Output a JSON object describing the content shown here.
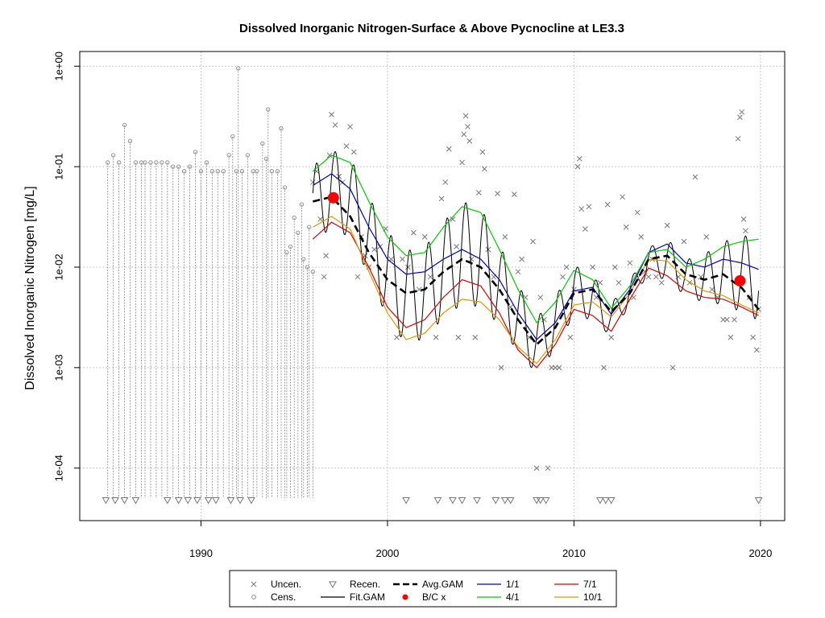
{
  "chart_data": {
    "type": "scatter",
    "title": "Dissolved Inorganic Nitrogen-Surface & Above Pycnocline at LE3.3",
    "ylabel": "Dissolved Inorganic Nitrogen [mg/L]",
    "xlabel": "",
    "y_scale": "log",
    "xlim": [
      1983.5,
      2021.3
    ],
    "ylim": [
      3e-05,
      1.4
    ],
    "x_ticks": [
      1990,
      2000,
      2010,
      2020
    ],
    "y_ticks": [
      {
        "value": 1,
        "label": "1e+00"
      },
      {
        "value": 0.1,
        "label": "1e-01"
      },
      {
        "value": 0.01,
        "label": "1e-02"
      },
      {
        "value": 0.001,
        "label": "1e-03"
      },
      {
        "value": 0.0001,
        "label": "1e-04"
      }
    ],
    "grid": true,
    "colors": {
      "uncen": "#777777",
      "cens": "#888888",
      "fit_gam": "#000000",
      "avg_gam": "#000000",
      "bc": "#ff0000",
      "p1_1": "#0000cc",
      "p4_1": "#00cc00",
      "p7_1": "#dd0000",
      "p10_1": "#e69500"
    },
    "legend": {
      "placement": "bottom",
      "items": [
        {
          "label": "Uncen.",
          "symbol": "x"
        },
        {
          "label": "Cens.",
          "symbol": "circle"
        },
        {
          "label": "Recen.",
          "symbol": "triangle-down"
        },
        {
          "label": "Fit.GAM",
          "symbol": "line-black"
        },
        {
          "label": "Avg.GAM",
          "symbol": "dash-black"
        },
        {
          "label": "B/C x",
          "symbol": "dot-red"
        },
        {
          "label": "1/1",
          "symbol": "line-blue"
        },
        {
          "label": "4/1",
          "symbol": "line-green"
        },
        {
          "label": "7/1",
          "symbol": "line-red"
        },
        {
          "label": "10/1",
          "symbol": "line-orange"
        }
      ]
    },
    "bc_points": [
      {
        "x": 1997.1,
        "y": 0.049
      },
      {
        "x": 2018.9,
        "y": 0.0073
      }
    ],
    "uncensored_points": [
      [
        1996.0,
        0.07
      ],
      [
        1996.2,
        0.09
      ],
      [
        1996.4,
        0.03
      ],
      [
        1996.6,
        0.008
      ],
      [
        1996.7,
        0.013
      ],
      [
        1996.9,
        0.13
      ],
      [
        1997.0,
        0.33
      ],
      [
        1997.2,
        0.26
      ],
      [
        1997.4,
        0.08
      ],
      [
        1997.6,
        0.07
      ],
      [
        1997.8,
        0.16
      ],
      [
        1998.0,
        0.25
      ],
      [
        1998.2,
        0.14
      ],
      [
        1998.4,
        0.008
      ],
      [
        1998.6,
        0.02
      ],
      [
        1998.8,
        0.013
      ],
      [
        1999.0,
        0.01
      ],
      [
        1999.3,
        0.015
      ],
      [
        1999.6,
        0.016
      ],
      [
        1999.9,
        0.024
      ],
      [
        2000.2,
        0.012
      ],
      [
        2000.5,
        0.002
      ],
      [
        2000.8,
        0.012
      ],
      [
        2001.1,
        0.01
      ],
      [
        2001.4,
        0.022
      ],
      [
        2001.7,
        0.006
      ],
      [
        2002.0,
        0.02
      ],
      [
        2002.3,
        0.008
      ],
      [
        2002.6,
        0.002
      ],
      [
        2002.9,
        0.048
      ],
      [
        2003.1,
        0.07
      ],
      [
        2003.3,
        0.15
      ],
      [
        2003.5,
        0.03
      ],
      [
        2003.7,
        0.016
      ],
      [
        2003.8,
        0.002
      ],
      [
        2004.0,
        0.11
      ],
      [
        2004.1,
        0.21
      ],
      [
        2004.2,
        0.32
      ],
      [
        2004.3,
        0.25
      ],
      [
        2004.4,
        0.18
      ],
      [
        2004.5,
        0.012
      ],
      [
        2004.7,
        0.002
      ],
      [
        2004.9,
        0.055
      ],
      [
        2005.1,
        0.14
      ],
      [
        2005.2,
        0.095
      ],
      [
        2005.4,
        0.015
      ],
      [
        2005.7,
        0.008
      ],
      [
        2005.9,
        0.054
      ],
      [
        2006.1,
        0.001
      ],
      [
        2006.3,
        0.02
      ],
      [
        2006.6,
        0.004
      ],
      [
        2006.8,
        0.053
      ],
      [
        2007.0,
        0.009
      ],
      [
        2007.2,
        0.012
      ],
      [
        2007.4,
        0.005
      ],
      [
        2007.6,
        0.002
      ],
      [
        2007.8,
        0.018
      ],
      [
        2008.0,
        0.0001
      ],
      [
        2008.2,
        0.005
      ],
      [
        2008.4,
        0.003
      ],
      [
        2008.6,
        0.0001
      ],
      [
        2008.8,
        0.001
      ],
      [
        2009.0,
        0.001
      ],
      [
        2009.2,
        0.001
      ],
      [
        2009.4,
        0.008
      ],
      [
        2009.6,
        0.01
      ],
      [
        2009.8,
        0.002
      ],
      [
        2010.0,
        0.006
      ],
      [
        2010.2,
        0.1
      ],
      [
        2010.3,
        0.12
      ],
      [
        2010.4,
        0.038
      ],
      [
        2010.6,
        0.024
      ],
      [
        2010.8,
        0.04
      ],
      [
        2011.0,
        0.01
      ],
      [
        2011.2,
        0.005
      ],
      [
        2011.4,
        0.007
      ],
      [
        2011.6,
        0.001
      ],
      [
        2011.8,
        0.042
      ],
      [
        2012.0,
        0.002
      ],
      [
        2012.2,
        0.01
      ],
      [
        2012.4,
        0.007
      ],
      [
        2012.6,
        0.05
      ],
      [
        2012.8,
        0.025
      ],
      [
        2013.0,
        0.011
      ],
      [
        2013.2,
        0.005
      ],
      [
        2013.4,
        0.035
      ],
      [
        2013.6,
        0.02
      ],
      [
        2013.8,
        0.009
      ],
      [
        2014.0,
        0.008
      ],
      [
        2014.2,
        0.012
      ],
      [
        2014.4,
        0.008
      ],
      [
        2014.7,
        0.007
      ],
      [
        2015.0,
        0.026
      ],
      [
        2015.3,
        0.001
      ],
      [
        2015.6,
        0.008
      ],
      [
        2015.9,
        0.018
      ],
      [
        2016.2,
        0.007
      ],
      [
        2016.5,
        0.079
      ],
      [
        2016.8,
        0.008
      ],
      [
        2017.1,
        0.02
      ],
      [
        2017.4,
        0.006
      ],
      [
        2017.7,
        0.005
      ],
      [
        2018.0,
        0.003
      ],
      [
        2018.2,
        0.003
      ],
      [
        2018.4,
        0.002
      ],
      [
        2018.6,
        0.003
      ],
      [
        2018.8,
        0.19
      ],
      [
        2018.9,
        0.31
      ],
      [
        2019.0,
        0.35
      ],
      [
        2019.1,
        0.03
      ],
      [
        2019.2,
        0.023
      ],
      [
        2019.4,
        0.005
      ],
      [
        2019.6,
        0.002
      ],
      [
        2019.8,
        0.0015
      ],
      [
        2019.9,
        0.0038
      ]
    ],
    "censored_points": [
      [
        1985.0,
        0.11
      ],
      [
        1985.3,
        0.13
      ],
      [
        1985.6,
        0.11
      ],
      [
        1985.9,
        0.26
      ],
      [
        1986.2,
        0.18
      ],
      [
        1986.5,
        0.11
      ],
      [
        1986.8,
        0.11
      ],
      [
        1987.0,
        0.11
      ],
      [
        1987.3,
        0.11
      ],
      [
        1987.6,
        0.11
      ],
      [
        1987.9,
        0.11
      ],
      [
        1988.2,
        0.11
      ],
      [
        1988.5,
        0.1
      ],
      [
        1988.8,
        0.1
      ],
      [
        1989.1,
        0.09
      ],
      [
        1989.4,
        0.1
      ],
      [
        1989.7,
        0.14
      ],
      [
        1990.0,
        0.09
      ],
      [
        1990.3,
        0.11
      ],
      [
        1990.6,
        0.09
      ],
      [
        1990.9,
        0.09
      ],
      [
        1991.2,
        0.09
      ],
      [
        1991.5,
        0.13
      ],
      [
        1991.7,
        0.2
      ],
      [
        1991.9,
        0.09
      ],
      [
        1992.0,
        0.95
      ],
      [
        1992.2,
        0.09
      ],
      [
        1992.5,
        0.13
      ],
      [
        1992.8,
        0.09
      ],
      [
        1993.0,
        0.09
      ],
      [
        1993.3,
        0.17
      ],
      [
        1993.5,
        0.12
      ],
      [
        1993.6,
        0.37
      ],
      [
        1993.8,
        0.09
      ],
      [
        1994.1,
        0.09
      ],
      [
        1994.3,
        0.24
      ],
      [
        1994.5,
        0.062
      ],
      [
        1994.6,
        0.014
      ],
      [
        1994.8,
        0.016
      ],
      [
        1995.0,
        0.031
      ],
      [
        1995.2,
        0.022
      ],
      [
        1995.4,
        0.042
      ],
      [
        1995.5,
        0.012
      ],
      [
        1995.7,
        0.01
      ],
      [
        1995.8,
        0.025
      ],
      [
        1996.0,
        0.009
      ]
    ],
    "recensored_x": [
      1984.9,
      1985.4,
      1985.9,
      1986.5,
      1988.2,
      1988.8,
      1989.3,
      1989.8,
      1990.4,
      1990.8,
      1991.6,
      1992.1,
      1992.7,
      2001.0,
      2002.7,
      2003.5,
      2004.0,
      2004.8,
      2005.8,
      2006.3,
      2006.6,
      2008.0,
      2008.2,
      2008.5,
      2011.4,
      2011.7,
      2012.0,
      2019.9
    ],
    "recensored_y": 4.8e-05,
    "fit_gam_start": 1996.0,
    "fit_gam_end": 2019.9,
    "avg_gam": {
      "x": [
        1996.0,
        1997.0,
        1998.0,
        1999.0,
        2000.0,
        2001.0,
        2002.0,
        2003.0,
        2004.0,
        2005.0,
        2006.0,
        2007.0,
        2008.0,
        2009.0,
        2010.0,
        2011.0,
        2012.0,
        2013.0,
        2014.0,
        2015.0,
        2016.0,
        2017.0,
        2018.0,
        2019.0,
        2019.9
      ],
      "y": [
        0.045,
        0.05,
        0.032,
        0.014,
        0.0075,
        0.0055,
        0.006,
        0.009,
        0.012,
        0.01,
        0.006,
        0.003,
        0.0017,
        0.0025,
        0.0055,
        0.006,
        0.0036,
        0.0055,
        0.012,
        0.013,
        0.0085,
        0.0075,
        0.0085,
        0.0062,
        0.0038
      ]
    },
    "seasonal_curves": [
      {
        "name": "1/1",
        "color_key": "p1_1",
        "x": [
          1996.0,
          1997.0,
          1998.0,
          1999.0,
          2000.0,
          2001.0,
          2002.0,
          2003.0,
          2004.0,
          2005.0,
          2006.0,
          2007.0,
          2008.0,
          2009.0,
          2010.0,
          2011.0,
          2012.0,
          2013.0,
          2014.0,
          2015.0,
          2016.0,
          2017.0,
          2018.0,
          2019.0,
          2019.9
        ],
        "y": [
          0.065,
          0.085,
          0.06,
          0.025,
          0.012,
          0.0085,
          0.009,
          0.012,
          0.015,
          0.012,
          0.0075,
          0.0035,
          0.0019,
          0.0028,
          0.0058,
          0.0063,
          0.0034,
          0.006,
          0.014,
          0.017,
          0.011,
          0.01,
          0.012,
          0.011,
          0.0095
        ]
      },
      {
        "name": "4/1",
        "color_key": "p4_1",
        "x": [
          1996.0,
          1997.0,
          1998.0,
          1999.0,
          2000.0,
          2001.0,
          2002.0,
          2003.0,
          2004.0,
          2005.0,
          2006.0,
          2007.0,
          2008.0,
          2009.0,
          2010.0,
          2011.0,
          2012.0,
          2013.0,
          2014.0,
          2015.0,
          2016.0,
          2017.0,
          2018.0,
          2019.0,
          2019.9
        ],
        "y": [
          0.09,
          0.13,
          0.11,
          0.045,
          0.02,
          0.013,
          0.014,
          0.025,
          0.04,
          0.035,
          0.015,
          0.006,
          0.0028,
          0.0045,
          0.0093,
          0.0075,
          0.0039,
          0.0065,
          0.014,
          0.015,
          0.01,
          0.012,
          0.016,
          0.018,
          0.019
        ]
      },
      {
        "name": "7/1",
        "color_key": "p7_1",
        "x": [
          1996.0,
          1997.0,
          1998.0,
          1999.0,
          2000.0,
          2001.0,
          2002.0,
          2003.0,
          2004.0,
          2005.0,
          2006.0,
          2007.0,
          2008.0,
          2009.0,
          2010.0,
          2011.0,
          2012.0,
          2013.0,
          2014.0,
          2015.0,
          2016.0,
          2017.0,
          2018.0,
          2019.0,
          2019.9
        ],
        "y": [
          0.019,
          0.028,
          0.022,
          0.01,
          0.004,
          0.0025,
          0.003,
          0.005,
          0.0075,
          0.0065,
          0.0035,
          0.0015,
          0.001,
          0.0017,
          0.0038,
          0.0033,
          0.0023,
          0.0048,
          0.0098,
          0.0082,
          0.0058,
          0.005,
          0.0048,
          0.004,
          0.0033
        ]
      },
      {
        "name": "10/1",
        "color_key": "p10_1",
        "x": [
          1996.0,
          1997.0,
          1998.0,
          1999.0,
          2000.0,
          2001.0,
          2002.0,
          2003.0,
          2004.0,
          2005.0,
          2006.0,
          2007.0,
          2008.0,
          2009.0,
          2010.0,
          2011.0,
          2012.0,
          2013.0,
          2014.0,
          2015.0,
          2016.0,
          2017.0,
          2018.0,
          2019.0,
          2019.9
        ],
        "y": [
          0.025,
          0.032,
          0.024,
          0.009,
          0.0035,
          0.0019,
          0.0022,
          0.0035,
          0.0048,
          0.0045,
          0.003,
          0.0016,
          0.0011,
          0.0019,
          0.0042,
          0.0045,
          0.0032,
          0.0055,
          0.012,
          0.0115,
          0.0075,
          0.0058,
          0.0052,
          0.0042,
          0.0035
        ]
      }
    ]
  }
}
